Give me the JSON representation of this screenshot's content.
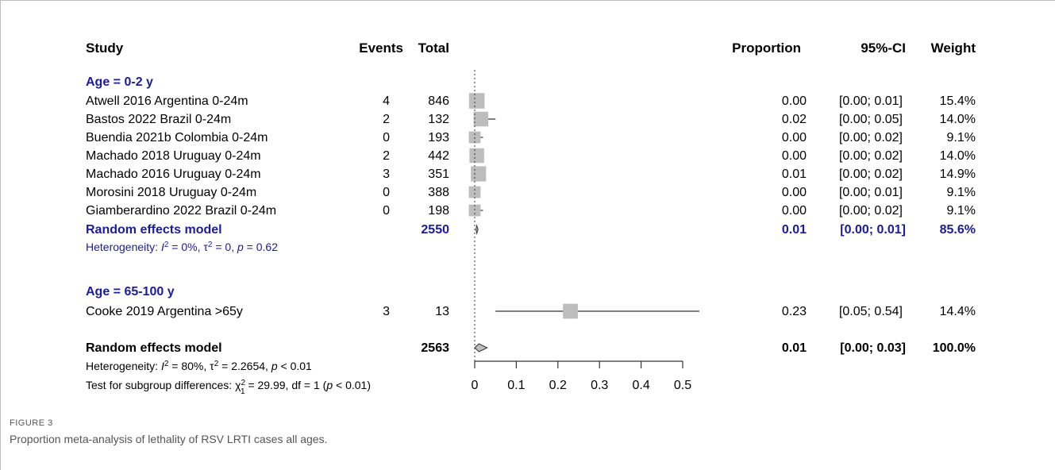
{
  "headers": {
    "study": "Study",
    "events": "Events",
    "total": "Total",
    "proportion": "Proportion",
    "ci": "95%-CI",
    "weight": "Weight"
  },
  "caption": {
    "label": "FIGURE 3",
    "text": "Proportion meta-analysis of lethality of RSV LRTI cases all ages."
  },
  "colors": {
    "subgroup_text": "#1a1aa6",
    "box": "#bdbdbd",
    "line": "#333333"
  },
  "chart_data": {
    "type": "forest",
    "xlim": [
      0,
      0.5
    ],
    "xticks": [
      "0",
      "0.1",
      "0.2",
      "0.3",
      "0.4",
      "0.5"
    ],
    "reference_line": 0,
    "groups": [
      {
        "label": "Age = 0-2 y",
        "studies": [
          {
            "name": "Atwell 2016 Argentina 0-24m",
            "events": "4",
            "total": "846",
            "proportion": "0.00",
            "ci": "[0.00; 0.01]",
            "weight": "15.4%",
            "est": 0.005,
            "lo": 0.0,
            "hi": 0.01
          },
          {
            "name": "Bastos 2022 Brazil 0-24m",
            "events": "2",
            "total": "132",
            "proportion": "0.02",
            "ci": "[0.00; 0.05]",
            "weight": "14.0%",
            "est": 0.015,
            "lo": 0.0,
            "hi": 0.05
          },
          {
            "name": "Buendia 2021b Colombia 0-24m",
            "events": "0",
            "total": "193",
            "proportion": "0.00",
            "ci": "[0.00; 0.02]",
            "weight": "9.1%",
            "est": 0.0,
            "lo": 0.0,
            "hi": 0.02
          },
          {
            "name": "Machado 2018 Uruguay 0-24m",
            "events": "2",
            "total": "442",
            "proportion": "0.00",
            "ci": "[0.00; 0.02]",
            "weight": "14.0%",
            "est": 0.005,
            "lo": 0.0,
            "hi": 0.02
          },
          {
            "name": "Machado 2016 Uruguay 0-24m",
            "events": "3",
            "total": "351",
            "proportion": "0.01",
            "ci": "[0.00; 0.02]",
            "weight": "14.9%",
            "est": 0.009,
            "lo": 0.0,
            "hi": 0.02
          },
          {
            "name": "Morosini 2018 Uruguay 0-24m",
            "events": "0",
            "total": "388",
            "proportion": "0.00",
            "ci": "[0.00; 0.01]",
            "weight": "9.1%",
            "est": 0.0,
            "lo": 0.0,
            "hi": 0.01
          },
          {
            "name": "Giamberardino 2022 Brazil 0-24m",
            "events": "0",
            "total": "198",
            "proportion": "0.00",
            "ci": "[0.00; 0.02]",
            "weight": "9.1%",
            "est": 0.0,
            "lo": 0.0,
            "hi": 0.02
          }
        ],
        "summary": {
          "label": "Random effects model",
          "total": "2550",
          "proportion": "0.01",
          "ci": "[0.00; 0.01]",
          "weight": "85.6%",
          "est": 0.005,
          "lo": 0.003,
          "hi": 0.008
        },
        "heterogeneity": {
          "prefix": "Heterogeneity: ",
          "i2": "I",
          "i2_val": " = 0%, ",
          "tau": "τ",
          "tau_val": " = 0, ",
          "p": "p",
          "p_val": " = 0.62"
        }
      },
      {
        "label": "Age = 65-100 y",
        "studies": [
          {
            "name": "Cooke 2019 Argentina >65y",
            "events": "3",
            "total": "13",
            "proportion": "0.23",
            "ci": "[0.05; 0.54]",
            "weight": "14.4%",
            "est": 0.23,
            "lo": 0.05,
            "hi": 0.54
          }
        ]
      }
    ],
    "overall": {
      "label": "Random effects model",
      "total": "2563",
      "proportion": "0.01",
      "ci": "[0.00; 0.03]",
      "weight": "100.0%",
      "est": 0.01,
      "lo": 0.0,
      "hi": 0.03,
      "heterogeneity": {
        "prefix": "Heterogeneity: ",
        "i2": "I",
        "i2_val": " = 80%, ",
        "tau": "τ",
        "tau_val": " = 2.2654, ",
        "p": "p",
        "p_val": " < 0.01"
      },
      "subgroup_test": {
        "prefix": "Test for subgroup differences: ",
        "chi": "χ",
        "chi_sub": "1",
        "chi_val": " = 29.99, df = 1 (",
        "p": "p",
        "p_val": " < 0.01)"
      }
    }
  }
}
